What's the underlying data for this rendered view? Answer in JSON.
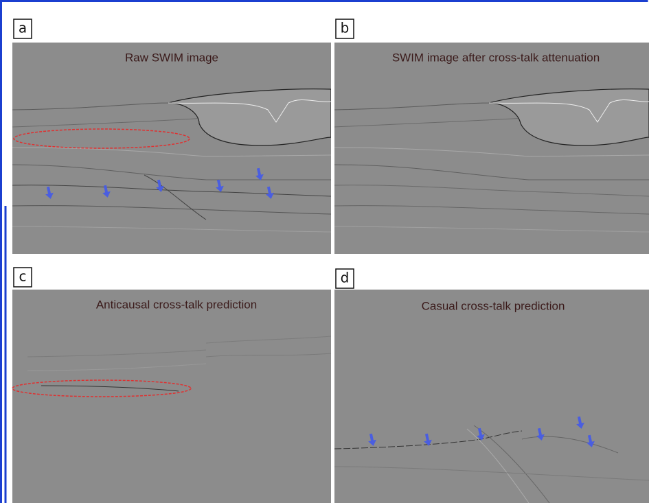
{
  "panels": [
    {
      "label": "a",
      "title": "Raw SWIM image"
    },
    {
      "label": "b",
      "title": "SWIM image after cross-talk attenuation"
    },
    {
      "label": "c",
      "title": "Anticausal cross-talk prediction"
    },
    {
      "label": "d",
      "title": "Casual cross-talk prediction"
    }
  ]
}
